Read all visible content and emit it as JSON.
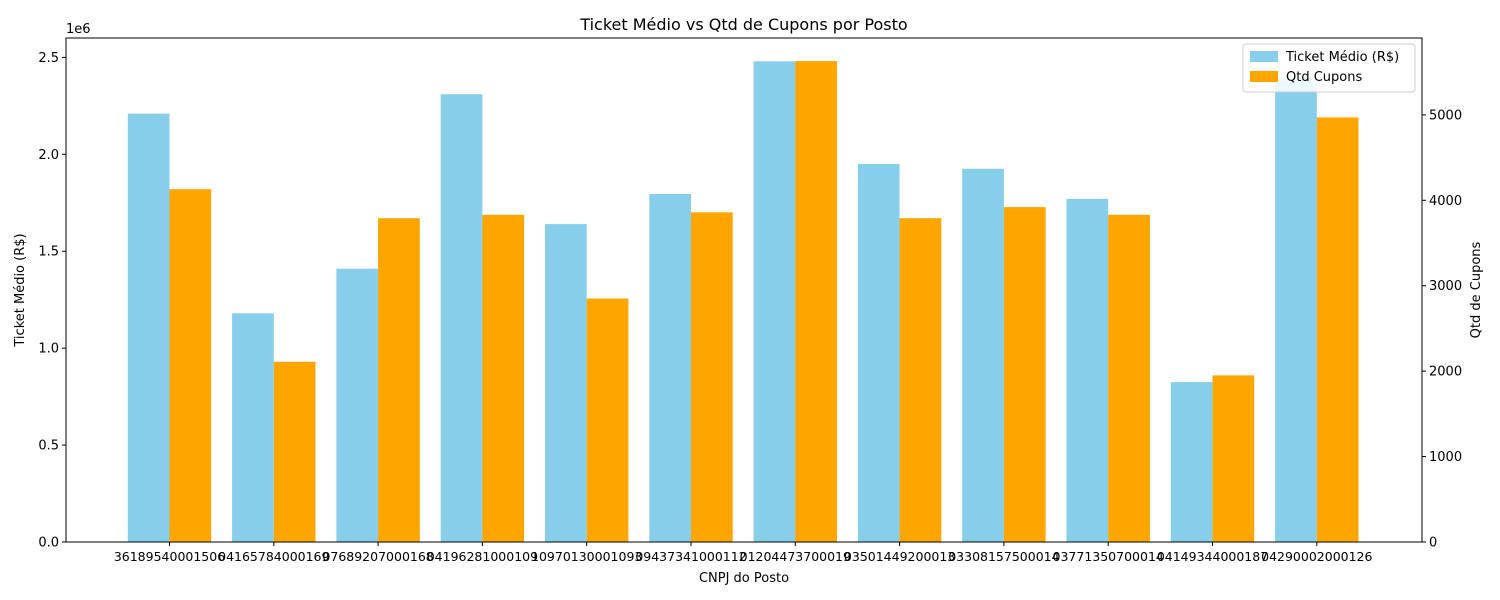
{
  "chart_data": {
    "type": "bar",
    "title": "Ticket Médio vs Qtd de Cupons por Posto",
    "xlabel": "CNPJ do Posto",
    "ylabel_left": "Ticket Médio (R$)",
    "ylabel_right": "Qtd de Cupons",
    "left_offset_label": "1e6",
    "legend_position": "top-right",
    "grid": false,
    "categories": [
      "36189540001506",
      "04165784000169",
      "07689207000168",
      "04196281000109",
      "10970130001093",
      "09437341000112",
      "01204473700019",
      "03501449200013",
      "03308157500014",
      "03771350700014",
      "04149344000187",
      "04290002000126"
    ],
    "tick_labels": [
      "36189540001506",
      "04165784000169",
      "07689207000168",
      "04196281000109",
      "10970130001093",
      "09437341000112",
      "01204473700019",
      "03501449200013",
      "03308157500014",
      "03771350700014",
      "04149344000187",
      "04290002000126"
    ],
    "left_axis": {
      "ylim": [
        0,
        2600000
      ],
      "ticks": [
        0,
        500000,
        1000000,
        1500000,
        2000000,
        2500000
      ],
      "tick_labels": [
        "0.0",
        "0.5",
        "1.0",
        "1.5",
        "2.0",
        "2.5"
      ],
      "color": "#87ceeb"
    },
    "right_axis": {
      "ylim": [
        0,
        5900
      ],
      "ticks": [
        0,
        1000,
        2000,
        3000,
        4000,
        5000
      ],
      "tick_labels": [
        "0",
        "1000",
        "2000",
        "3000",
        "4000",
        "5000"
      ],
      "color": "#ffa500"
    },
    "series": [
      {
        "name": "Ticket Médio (R$)",
        "axis": "left",
        "color": "#87ceeb",
        "values": [
          2210000,
          1180000,
          1410000,
          2310000,
          1640000,
          1795000,
          2480000,
          1950000,
          1925000,
          1770000,
          825000,
          2390000
        ]
      },
      {
        "name": "Qtd Cupons",
        "axis": "right",
        "color": "#ffa500",
        "values": [
          4130,
          2110,
          3790,
          3830,
          2850,
          3860,
          5630,
          3790,
          3920,
          3830,
          1950,
          4970
        ]
      }
    ]
  }
}
